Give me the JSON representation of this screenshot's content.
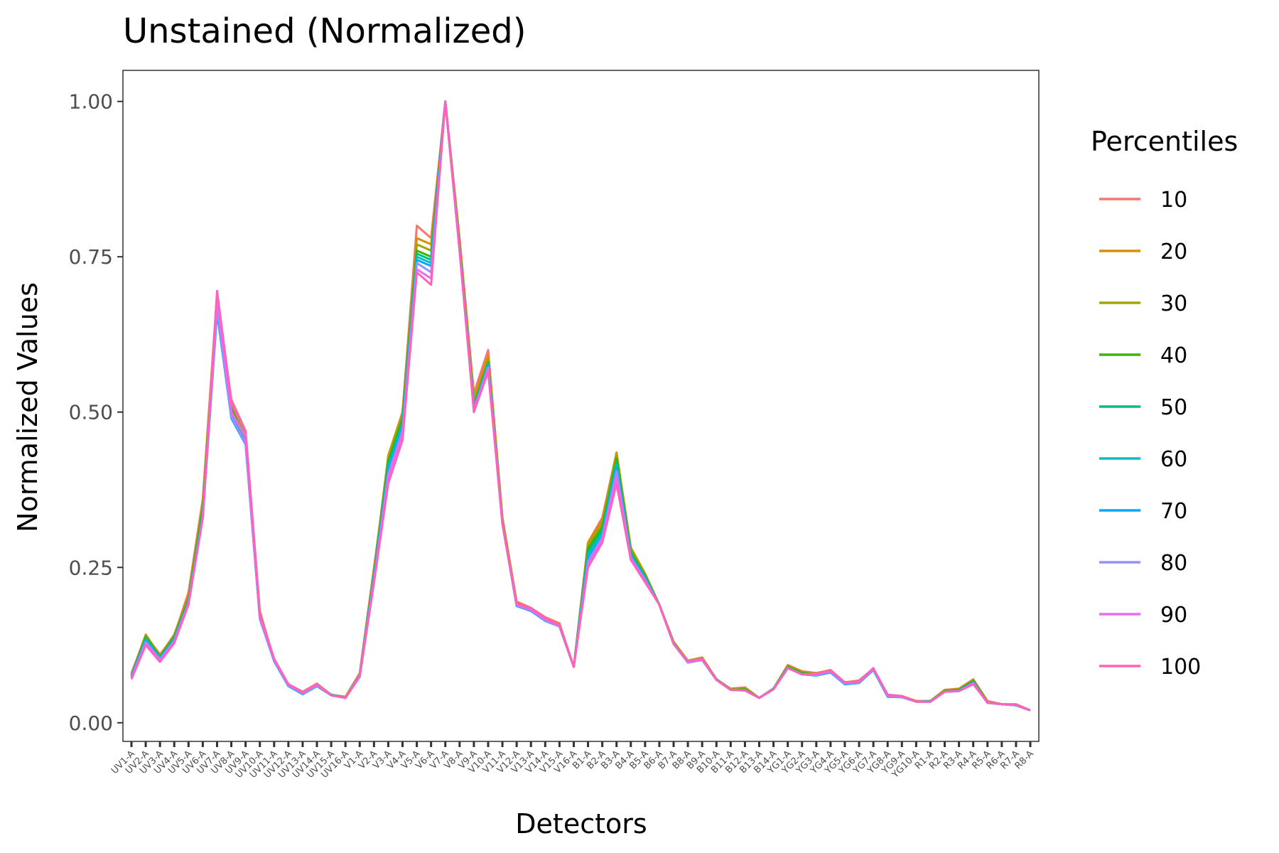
{
  "chart_data": {
    "type": "line",
    "title": "Unstained (Normalized)",
    "xlabel": "Detectors",
    "ylabel": "Normalized Values",
    "ylim": [
      -0.03,
      1.05
    ],
    "yticks": [
      0,
      0.25,
      0.5,
      0.75,
      1.0
    ],
    "ytick_labels": [
      "0.00",
      "0.25",
      "0.50",
      "0.75",
      "1.00"
    ],
    "grid": false,
    "legend": {
      "title": "Percentiles",
      "position": "right"
    },
    "categories": [
      "UV1-A",
      "UV2-A",
      "UV3-A",
      "UV4-A",
      "UV5-A",
      "UV6-A",
      "UV7-A",
      "UV8-A",
      "UV9-A",
      "UV10-A",
      "UV11-A",
      "UV12-A",
      "UV13-A",
      "UV14-A",
      "UV15-A",
      "UV16-A",
      "V1-A",
      "V2-A",
      "V3-A",
      "V4-A",
      "V5-A",
      "V6-A",
      "V7-A",
      "V8-A",
      "V9-A",
      "V10-A",
      "V11-A",
      "V12-A",
      "V13-A",
      "V14-A",
      "V15-A",
      "V16-A",
      "B1-A",
      "B2-A",
      "B3-A",
      "B4-A",
      "B5-A",
      "B6-A",
      "B7-A",
      "B8-A",
      "B9-A",
      "B10-A",
      "B11-A",
      "B12-A",
      "B13-A",
      "B14-A",
      "YG1-A",
      "YG2-A",
      "YG3-A",
      "YG4-A",
      "YG5-A",
      "YG6-A",
      "YG7-A",
      "YG8-A",
      "YG9-A",
      "YG10-A",
      "R1-A",
      "R2-A",
      "R3-A",
      "R4-A",
      "R5-A",
      "R6-A",
      "R7-A",
      "R8-A"
    ],
    "series": [
      {
        "name": "10",
        "color": "#F8766D",
        "values": [
          0.08,
          0.14,
          0.11,
          0.14,
          0.21,
          0.36,
          0.69,
          0.52,
          0.47,
          0.18,
          0.1,
          0.062,
          0.05,
          0.063,
          0.045,
          0.042,
          0.08,
          0.25,
          0.42,
          0.5,
          0.8,
          0.78,
          1.0,
          0.78,
          0.53,
          0.6,
          0.33,
          0.195,
          0.185,
          0.17,
          0.16,
          0.09,
          0.29,
          0.33,
          0.435,
          0.28,
          0.24,
          0.19,
          0.13,
          0.1,
          0.105,
          0.07,
          0.055,
          0.057,
          0.04,
          0.055,
          0.093,
          0.083,
          0.08,
          0.085,
          0.065,
          0.068,
          0.087,
          0.045,
          0.043,
          0.035,
          0.035,
          0.053,
          0.055,
          0.07,
          0.035,
          0.03,
          0.03,
          0.02
        ]
      },
      {
        "name": "20",
        "color": "#D89000",
        "values": [
          0.078,
          0.142,
          0.108,
          0.142,
          0.205,
          0.355,
          0.69,
          0.515,
          0.465,
          0.177,
          0.102,
          0.062,
          0.049,
          0.062,
          0.045,
          0.041,
          0.079,
          0.245,
          0.43,
          0.5,
          0.78,
          0.77,
          1.0,
          0.775,
          0.52,
          0.59,
          0.33,
          0.193,
          0.183,
          0.168,
          0.158,
          0.09,
          0.29,
          0.325,
          0.435,
          0.282,
          0.24,
          0.19,
          0.13,
          0.1,
          0.105,
          0.07,
          0.054,
          0.056,
          0.04,
          0.055,
          0.092,
          0.082,
          0.08,
          0.084,
          0.065,
          0.068,
          0.087,
          0.045,
          0.043,
          0.035,
          0.035,
          0.053,
          0.054,
          0.069,
          0.034,
          0.03,
          0.029,
          0.02
        ]
      },
      {
        "name": "30",
        "color": "#A3A500",
        "values": [
          0.077,
          0.14,
          0.107,
          0.14,
          0.2,
          0.35,
          0.685,
          0.51,
          0.46,
          0.175,
          0.101,
          0.061,
          0.048,
          0.061,
          0.045,
          0.04,
          0.078,
          0.243,
          0.425,
          0.495,
          0.77,
          0.76,
          1.0,
          0.77,
          0.515,
          0.585,
          0.325,
          0.192,
          0.182,
          0.167,
          0.157,
          0.09,
          0.285,
          0.32,
          0.43,
          0.28,
          0.238,
          0.19,
          0.13,
          0.099,
          0.104,
          0.07,
          0.054,
          0.055,
          0.04,
          0.055,
          0.091,
          0.081,
          0.079,
          0.084,
          0.064,
          0.067,
          0.086,
          0.044,
          0.042,
          0.034,
          0.035,
          0.052,
          0.054,
          0.068,
          0.034,
          0.03,
          0.029,
          0.02
        ]
      },
      {
        "name": "40",
        "color": "#39B600",
        "values": [
          0.076,
          0.138,
          0.106,
          0.138,
          0.198,
          0.345,
          0.68,
          0.505,
          0.455,
          0.173,
          0.1,
          0.06,
          0.047,
          0.06,
          0.045,
          0.04,
          0.077,
          0.24,
          0.42,
          0.49,
          0.76,
          0.75,
          1.0,
          0.768,
          0.51,
          0.58,
          0.323,
          0.19,
          0.181,
          0.166,
          0.156,
          0.09,
          0.28,
          0.315,
          0.425,
          0.275,
          0.236,
          0.19,
          0.129,
          0.098,
          0.103,
          0.07,
          0.053,
          0.054,
          0.04,
          0.055,
          0.09,
          0.08,
          0.078,
          0.083,
          0.063,
          0.066,
          0.086,
          0.043,
          0.042,
          0.034,
          0.035,
          0.051,
          0.053,
          0.067,
          0.033,
          0.03,
          0.028,
          0.02
        ]
      },
      {
        "name": "50",
        "color": "#00BF7D",
        "values": [
          0.076,
          0.136,
          0.105,
          0.136,
          0.196,
          0.34,
          0.672,
          0.5,
          0.452,
          0.17,
          0.1,
          0.06,
          0.046,
          0.06,
          0.045,
          0.04,
          0.077,
          0.238,
          0.415,
          0.485,
          0.755,
          0.745,
          1.0,
          0.765,
          0.508,
          0.578,
          0.322,
          0.189,
          0.18,
          0.165,
          0.155,
          0.09,
          0.275,
          0.31,
          0.42,
          0.272,
          0.235,
          0.19,
          0.128,
          0.097,
          0.102,
          0.07,
          0.053,
          0.053,
          0.04,
          0.055,
          0.089,
          0.079,
          0.077,
          0.082,
          0.062,
          0.065,
          0.086,
          0.042,
          0.042,
          0.034,
          0.035,
          0.05,
          0.052,
          0.066,
          0.032,
          0.03,
          0.028,
          0.02
        ]
      },
      {
        "name": "60",
        "color": "#00BFC4",
        "values": [
          0.075,
          0.134,
          0.104,
          0.135,
          0.195,
          0.335,
          0.665,
          0.495,
          0.45,
          0.168,
          0.099,
          0.059,
          0.046,
          0.059,
          0.045,
          0.04,
          0.076,
          0.235,
          0.41,
          0.48,
          0.75,
          0.74,
          1.0,
          0.762,
          0.506,
          0.576,
          0.321,
          0.188,
          0.18,
          0.164,
          0.155,
          0.09,
          0.27,
          0.305,
          0.415,
          0.27,
          0.233,
          0.19,
          0.127,
          0.097,
          0.101,
          0.069,
          0.053,
          0.052,
          0.04,
          0.054,
          0.088,
          0.078,
          0.076,
          0.081,
          0.062,
          0.064,
          0.085,
          0.042,
          0.041,
          0.034,
          0.034,
          0.05,
          0.052,
          0.065,
          0.032,
          0.03,
          0.028,
          0.02
        ]
      },
      {
        "name": "70",
        "color": "#00A9FF",
        "values": [
          0.074,
          0.132,
          0.103,
          0.134,
          0.194,
          0.33,
          0.66,
          0.49,
          0.448,
          0.167,
          0.099,
          0.059,
          0.046,
          0.059,
          0.044,
          0.04,
          0.076,
          0.232,
          0.405,
          0.475,
          0.745,
          0.735,
          1.0,
          0.76,
          0.505,
          0.574,
          0.32,
          0.188,
          0.18,
          0.164,
          0.155,
          0.09,
          0.265,
          0.3,
          0.41,
          0.268,
          0.232,
          0.19,
          0.127,
          0.097,
          0.101,
          0.069,
          0.053,
          0.052,
          0.04,
          0.054,
          0.088,
          0.078,
          0.076,
          0.081,
          0.062,
          0.064,
          0.085,
          0.042,
          0.041,
          0.034,
          0.034,
          0.05,
          0.051,
          0.065,
          0.032,
          0.03,
          0.028,
          0.02
        ]
      },
      {
        "name": "80",
        "color": "#9590FF",
        "values": [
          0.073,
          0.13,
          0.102,
          0.132,
          0.193,
          0.33,
          0.668,
          0.492,
          0.45,
          0.168,
          0.1,
          0.06,
          0.047,
          0.06,
          0.044,
          0.04,
          0.076,
          0.23,
          0.4,
          0.47,
          0.74,
          0.725,
          1.0,
          0.76,
          0.504,
          0.572,
          0.32,
          0.189,
          0.181,
          0.165,
          0.155,
          0.09,
          0.26,
          0.298,
          0.405,
          0.266,
          0.23,
          0.19,
          0.127,
          0.097,
          0.101,
          0.069,
          0.053,
          0.052,
          0.04,
          0.054,
          0.088,
          0.078,
          0.077,
          0.082,
          0.063,
          0.065,
          0.086,
          0.043,
          0.041,
          0.034,
          0.034,
          0.05,
          0.051,
          0.064,
          0.032,
          0.03,
          0.028,
          0.02
        ]
      },
      {
        "name": "90",
        "color": "#E76BF3",
        "values": [
          0.072,
          0.127,
          0.1,
          0.13,
          0.192,
          0.33,
          0.68,
          0.5,
          0.46,
          0.17,
          0.101,
          0.061,
          0.048,
          0.061,
          0.044,
          0.04,
          0.075,
          0.228,
          0.395,
          0.465,
          0.73,
          0.715,
          1.0,
          0.76,
          0.502,
          0.57,
          0.32,
          0.19,
          0.182,
          0.166,
          0.156,
          0.09,
          0.255,
          0.295,
          0.395,
          0.264,
          0.228,
          0.19,
          0.127,
          0.098,
          0.102,
          0.069,
          0.053,
          0.052,
          0.04,
          0.054,
          0.088,
          0.078,
          0.078,
          0.083,
          0.064,
          0.066,
          0.087,
          0.044,
          0.042,
          0.034,
          0.034,
          0.05,
          0.051,
          0.063,
          0.032,
          0.03,
          0.029,
          0.02
        ]
      },
      {
        "name": "100",
        "color": "#FF62BC",
        "values": [
          0.07,
          0.125,
          0.098,
          0.128,
          0.19,
          0.33,
          0.695,
          0.515,
          0.47,
          0.175,
          0.103,
          0.062,
          0.049,
          0.062,
          0.044,
          0.04,
          0.074,
          0.225,
          0.385,
          0.455,
          0.725,
          0.705,
          1.0,
          0.76,
          0.5,
          0.565,
          0.32,
          0.192,
          0.184,
          0.168,
          0.157,
          0.09,
          0.25,
          0.29,
          0.385,
          0.262,
          0.226,
          0.19,
          0.127,
          0.099,
          0.103,
          0.069,
          0.053,
          0.052,
          0.04,
          0.054,
          0.088,
          0.078,
          0.079,
          0.084,
          0.065,
          0.067,
          0.088,
          0.045,
          0.043,
          0.034,
          0.034,
          0.05,
          0.051,
          0.062,
          0.033,
          0.03,
          0.029,
          0.02
        ]
      }
    ]
  }
}
